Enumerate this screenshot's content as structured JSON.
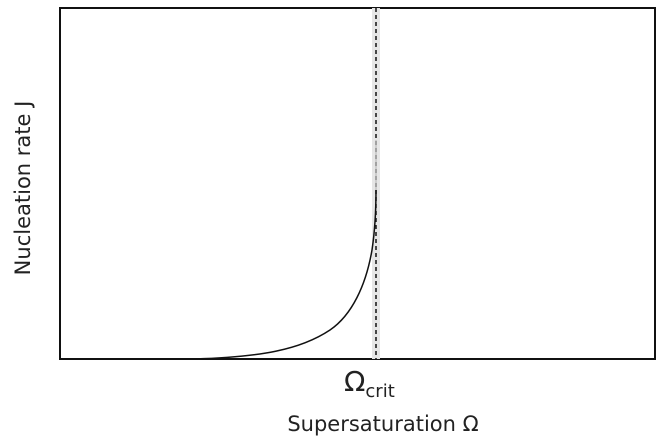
{
  "axes": {
    "y_label": "Nucleation rate J",
    "x_label": "Supersaturation  Ω"
  },
  "marker": {
    "symbol": "Ω",
    "subscript": "crit"
  }
}
